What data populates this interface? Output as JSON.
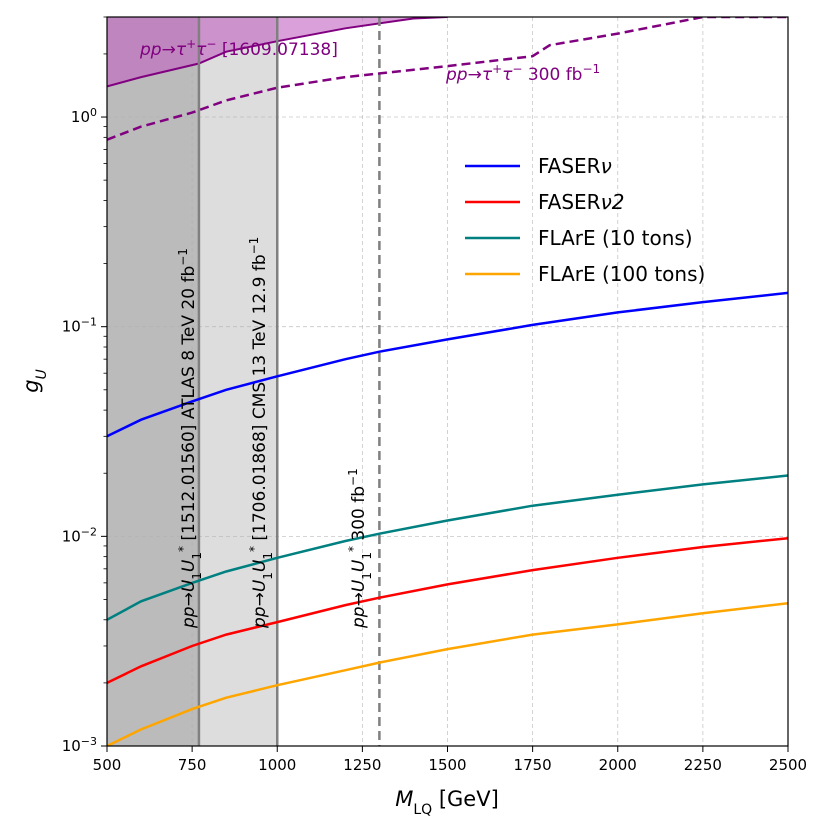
{
  "chart_data": {
    "type": "line",
    "title": "",
    "xlabel": {
      "main": "M",
      "sub": "LQ",
      "unit": " [GeV]"
    },
    "ylabel": {
      "main": "g",
      "sub": "U"
    },
    "xlim": [
      500,
      2500
    ],
    "ylim": [
      0.001,
      3.0
    ],
    "yscale": "log",
    "grid": true,
    "legend_position": "upper-right",
    "x_ticks": [
      500,
      750,
      1000,
      1250,
      1500,
      1750,
      2000,
      2250,
      2500
    ],
    "x_tick_labels": [
      "500",
      "750",
      "1000",
      "1250",
      "1500",
      "1750",
      "2000",
      "2250",
      "2500"
    ],
    "y_ticks": [
      {
        "value": 0.001,
        "base": "10",
        "exp": "−3"
      },
      {
        "value": 0.01,
        "base": "10",
        "exp": "−2"
      },
      {
        "value": 0.1,
        "base": "10",
        "exp": "−1"
      },
      {
        "value": 1,
        "base": "10",
        "exp": "0"
      }
    ],
    "excluded_regions": [
      {
        "name": "ATLAS 8 TeV 20 fb-1 [1512.01560]",
        "x_min": 500,
        "x_max": 770,
        "color": "#bbbbbb"
      },
      {
        "name": "CMS 13 TeV 12.9 fb-1 [1706.01868]",
        "x_min": 770,
        "x_max": 1000,
        "color": "#dddddd"
      }
    ],
    "tautau_region": {
      "color": "#c060c0",
      "edge_color": "#800080",
      "x": [
        500,
        600,
        770,
        850,
        1000,
        1200,
        1400,
        1500
      ],
      "y": [
        1.4,
        1.55,
        1.8,
        2.05,
        2.3,
        2.65,
        2.95,
        3.0
      ]
    },
    "vertical_lines": [
      {
        "x": 770,
        "style": "solid",
        "color": "#808080"
      },
      {
        "x": 1000,
        "style": "solid",
        "color": "#808080"
      },
      {
        "x": 1300,
        "style": "dashed",
        "color": "#808080"
      }
    ],
    "tautau_projection": {
      "color": "#800080",
      "style": "dashed",
      "x": [
        500,
        600,
        750,
        850,
        1000,
        1200,
        1500,
        1750,
        1800,
        2000,
        2250,
        2500
      ],
      "y": [
        0.78,
        0.9,
        1.05,
        1.2,
        1.38,
        1.55,
        1.75,
        1.95,
        2.2,
        2.5,
        3.0,
        3.0
      ]
    },
    "series": [
      {
        "name": "FASER",
        "legend_suffix": "ν",
        "color": "#0000ff",
        "x": [
          500,
          600,
          750,
          850,
          1000,
          1200,
          1300,
          1500,
          1750,
          2000,
          2250,
          2500
        ],
        "y": [
          0.03,
          0.036,
          0.044,
          0.05,
          0.058,
          0.07,
          0.076,
          0.087,
          0.102,
          0.117,
          0.131,
          0.145
        ]
      },
      {
        "name": "FASER",
        "legend_suffix": "ν2",
        "color": "#ff0000",
        "x": [
          500,
          600,
          750,
          850,
          1000,
          1200,
          1300,
          1500,
          1750,
          2000,
          2250,
          2500
        ],
        "y": [
          0.002,
          0.0024,
          0.003,
          0.0034,
          0.0039,
          0.0047,
          0.0051,
          0.0059,
          0.0069,
          0.0079,
          0.0089,
          0.0098
        ]
      },
      {
        "name": "FLArE (10 tons)",
        "legend_suffix": "",
        "color": "#008080",
        "x": [
          500,
          600,
          750,
          850,
          1000,
          1200,
          1300,
          1500,
          1750,
          2000,
          2250,
          2500
        ],
        "y": [
          0.004,
          0.0049,
          0.006,
          0.0068,
          0.0079,
          0.0095,
          0.0103,
          0.0119,
          0.014,
          0.0158,
          0.0177,
          0.0195
        ]
      },
      {
        "name": "FLArE (100 tons)",
        "legend_suffix": "",
        "color": "#ffa500",
        "x": [
          500,
          600,
          750,
          850,
          1000,
          1200,
          1300,
          1500,
          1750,
          2000,
          2250,
          2500
        ],
        "y": [
          0.001,
          0.0012,
          0.0015,
          0.0017,
          0.00195,
          0.0023,
          0.0025,
          0.0029,
          0.0034,
          0.0038,
          0.0043,
          0.0048
        ]
      }
    ],
    "annotations": {
      "tautau_current": {
        "prefix": "pp→τ",
        "mid": "τ",
        "ref": " [1609.07138]",
        "color": "#800080"
      },
      "tautau_future": {
        "prefix": "pp→τ",
        "mid": "τ",
        "ref": " 300 fb",
        "exp": "−1",
        "color": "#800080"
      },
      "atlas": {
        "prefix": "pp→U",
        "ref": " [1512.01560] ATLAS 8 TeV 20 fb",
        "exp": "−1"
      },
      "cms": {
        "prefix": "pp→U",
        "ref": " [1706.01868] CMS 13 TeV 12.9 fb",
        "exp": "−1"
      },
      "projection": {
        "prefix": "pp→U",
        "ref": " 300 fb",
        "exp": "−1"
      }
    }
  }
}
